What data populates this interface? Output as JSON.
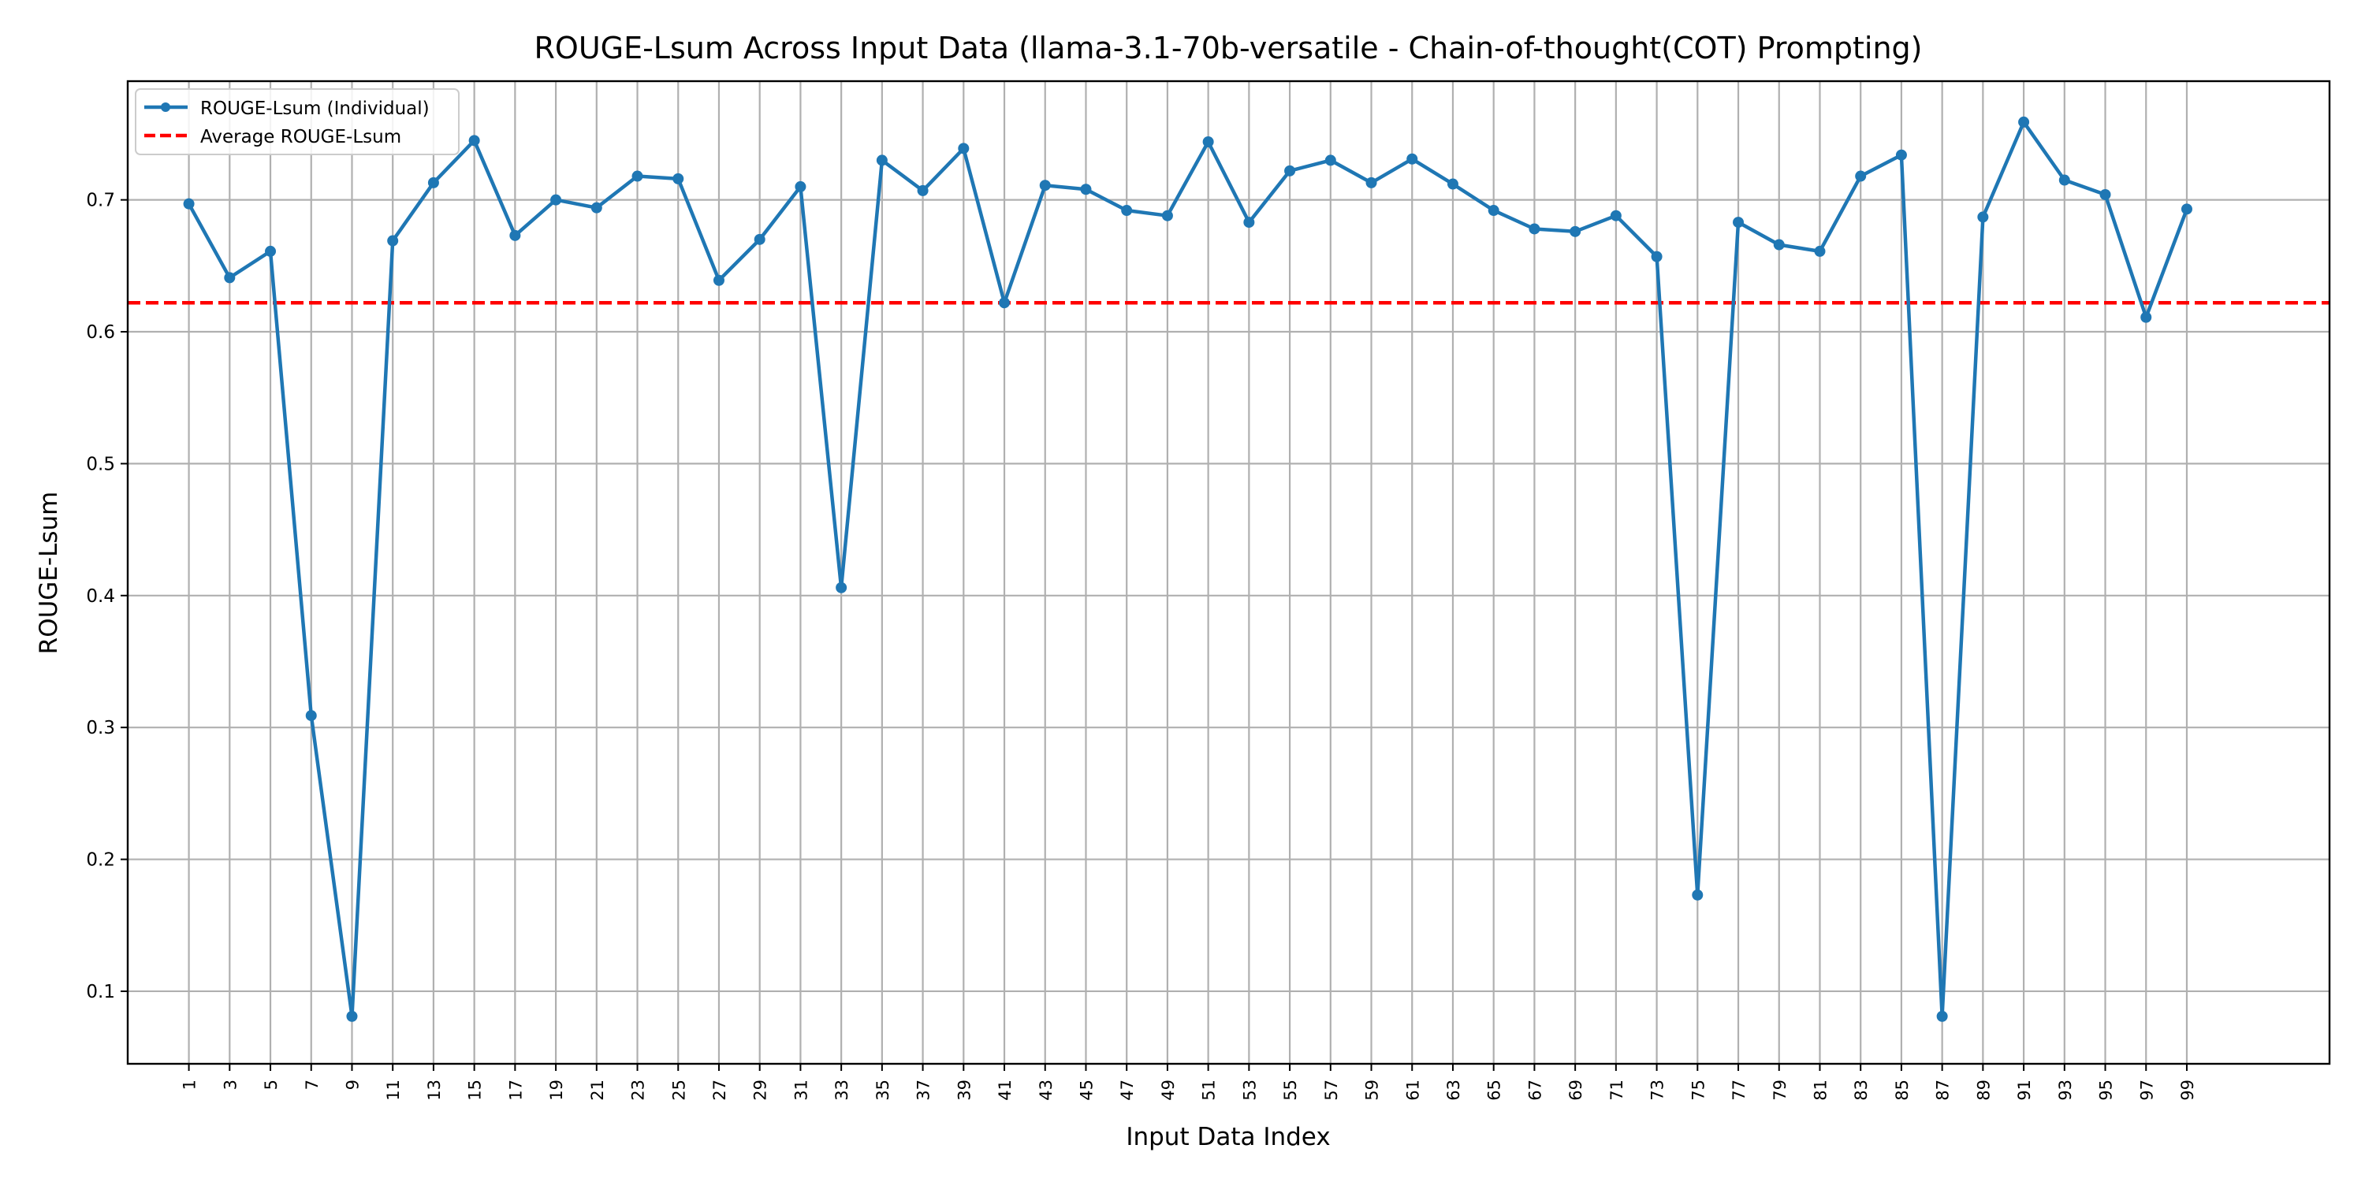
{
  "chart_data": {
    "type": "line",
    "title": "ROUGE-Lsum Across Input Data (llama-3.1-70b-versatile - Chain-of-thought(COT) Prompting)",
    "xlabel": "Input Data Index",
    "ylabel": "ROUGE-Lsum",
    "ylim": [
      0.045,
      0.79
    ],
    "xlim": [
      -1.5,
      52.5
    ],
    "grid": true,
    "legend_position": "top-left",
    "yticks": [
      "0.1",
      "0.2",
      "0.3",
      "0.4",
      "0.5",
      "0.6",
      "0.7"
    ],
    "categories": [
      "1",
      "3",
      "5",
      "7",
      "9",
      "11",
      "13",
      "15",
      "17",
      "19",
      "21",
      "23",
      "25",
      "27",
      "29",
      "31",
      "33",
      "35",
      "37",
      "39",
      "41",
      "43",
      "45",
      "47",
      "49",
      "51",
      "53",
      "55",
      "57",
      "59",
      "61",
      "63",
      "65",
      "67",
      "69",
      "71",
      "73",
      "75",
      "77",
      "79",
      "81",
      "83",
      "85",
      "87",
      "89",
      "91",
      "93",
      "95",
      "97",
      "99"
    ],
    "series": [
      {
        "name": "ROUGE-Lsum (Individual)",
        "color": "#1f77b4",
        "style": "solid",
        "values": [
          0.697,
          0.641,
          0.661,
          0.309,
          0.081,
          0.669,
          0.713,
          0.745,
          0.673,
          0.7,
          0.694,
          0.718,
          0.716,
          0.639,
          0.67,
          0.71,
          0.406,
          0.73,
          0.707,
          0.739,
          0.622,
          0.711,
          0.708,
          0.692,
          0.688,
          0.744,
          0.683,
          0.722,
          0.73,
          0.713,
          0.731,
          0.712,
          0.692,
          0.678,
          0.676,
          0.688,
          0.657,
          0.173,
          0.683,
          0.666,
          0.661,
          0.718,
          0.734,
          0.081,
          0.687,
          0.759,
          0.715,
          0.704,
          0.611,
          0.693
        ]
      },
      {
        "name": "Average ROUGE-Lsum",
        "color": "#ff0000",
        "style": "dashed",
        "value": 0.622
      }
    ]
  }
}
